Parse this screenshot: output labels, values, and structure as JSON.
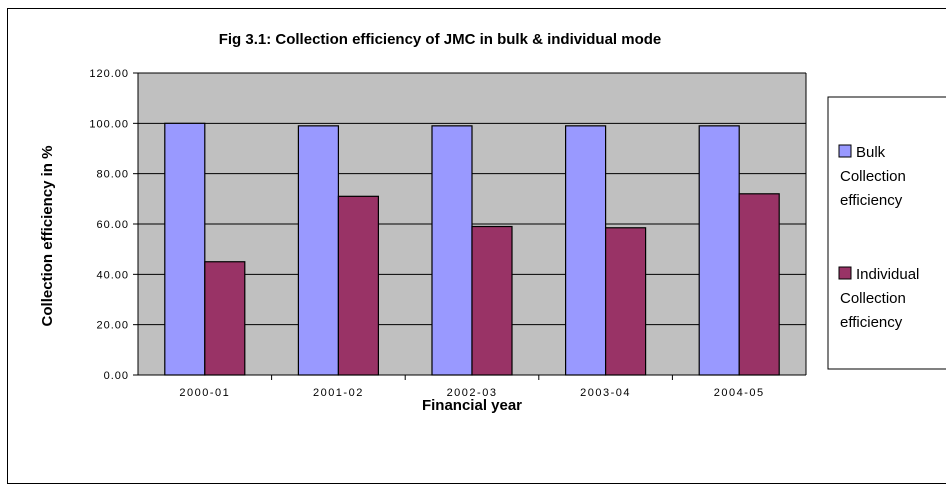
{
  "chart_data": {
    "type": "bar",
    "title": "Fig 3.1: Collection efficiency of JMC in bulk & individual mode",
    "xlabel": "Financial year",
    "ylabel": "Collection efficiency in %",
    "categories": [
      "2000-01",
      "2001-02",
      "2002-03",
      "2003-04",
      "2004-05"
    ],
    "ylim": [
      0,
      120
    ],
    "yticks": [
      "0.00",
      "20.00",
      "40.00",
      "60.00",
      "80.00",
      "100.00",
      "120.00"
    ],
    "grid": true,
    "legend_position": "right",
    "plot_background": "#C0C0C0",
    "series": [
      {
        "name": "Bulk Collection efficiency",
        "legend_lines": [
          "Bulk",
          "Collection",
          "efficiency"
        ],
        "color": "#9999FF",
        "values": [
          100,
          99,
          99,
          99,
          99
        ]
      },
      {
        "name": "Individual Collection efficiency",
        "legend_lines": [
          "Individual",
          "Collection",
          "efficiency"
        ],
        "color": "#993366",
        "values": [
          45,
          71,
          59,
          58.5,
          72
        ]
      }
    ]
  }
}
